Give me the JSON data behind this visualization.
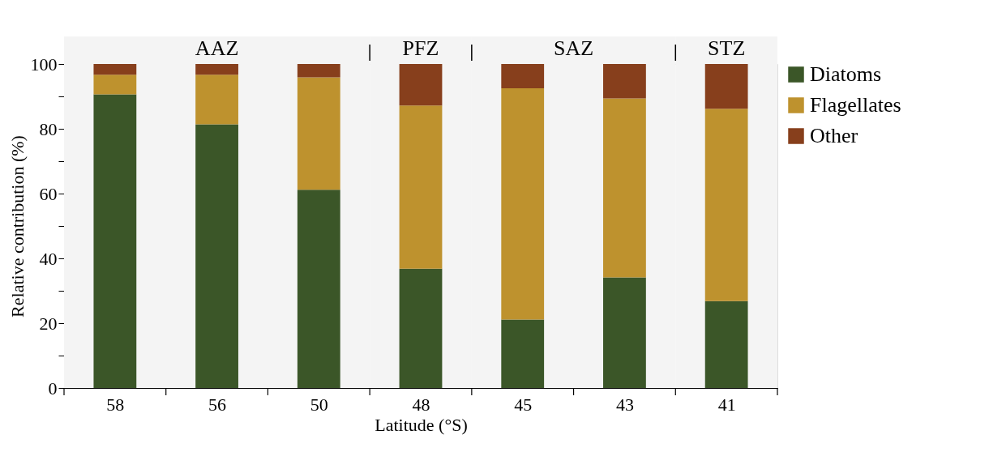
{
  "chart_data": {
    "type": "bar",
    "stacked": true,
    "xlabel": "Latitude (°S)",
    "ylabel": "Relative contribution (%)",
    "categories": [
      "58",
      "56",
      "50",
      "48",
      "45",
      "43",
      "41"
    ],
    "series": [
      {
        "name": "Diatoms",
        "color": "#3b5628",
        "values": [
          90.6,
          81.4,
          61.2,
          36.8,
          21.1,
          34.1,
          26.8
        ]
      },
      {
        "name": "Flagellates",
        "color": "#be922e",
        "values": [
          6.1,
          15.3,
          34.7,
          50.4,
          71.4,
          55.3,
          59.4
        ]
      },
      {
        "name": "Other",
        "color": "#873f1c",
        "values": [
          3.3,
          3.3,
          4.1,
          12.8,
          7.5,
          10.6,
          13.8
        ]
      }
    ],
    "ylim": [
      0,
      100
    ],
    "yticks": [
      0,
      {
        "value": 10,
        "label": null
      },
      20,
      {
        "value": 30,
        "label": null
      },
      40,
      {
        "value": 50,
        "label": null
      },
      60,
      {
        "value": 70,
        "label": null
      },
      80,
      {
        "value": 90,
        "label": null
      },
      100
    ],
    "bands": [
      {
        "axis": "x",
        "from": "58",
        "to": "50",
        "label": "AAZ",
        "color": "#f4f4f4"
      },
      {
        "axis": "x",
        "from": "48",
        "to": "48",
        "label": "PFZ",
        "color": "#f4f4f4"
      },
      {
        "axis": "x",
        "from": "45",
        "to": "43",
        "label": "SAZ",
        "color": "#f4f4f4"
      },
      {
        "axis": "x",
        "from": "41",
        "to": "41",
        "label": "STZ",
        "color": "#f4f4f4"
      }
    ],
    "grid": false,
    "legend": "right"
  }
}
